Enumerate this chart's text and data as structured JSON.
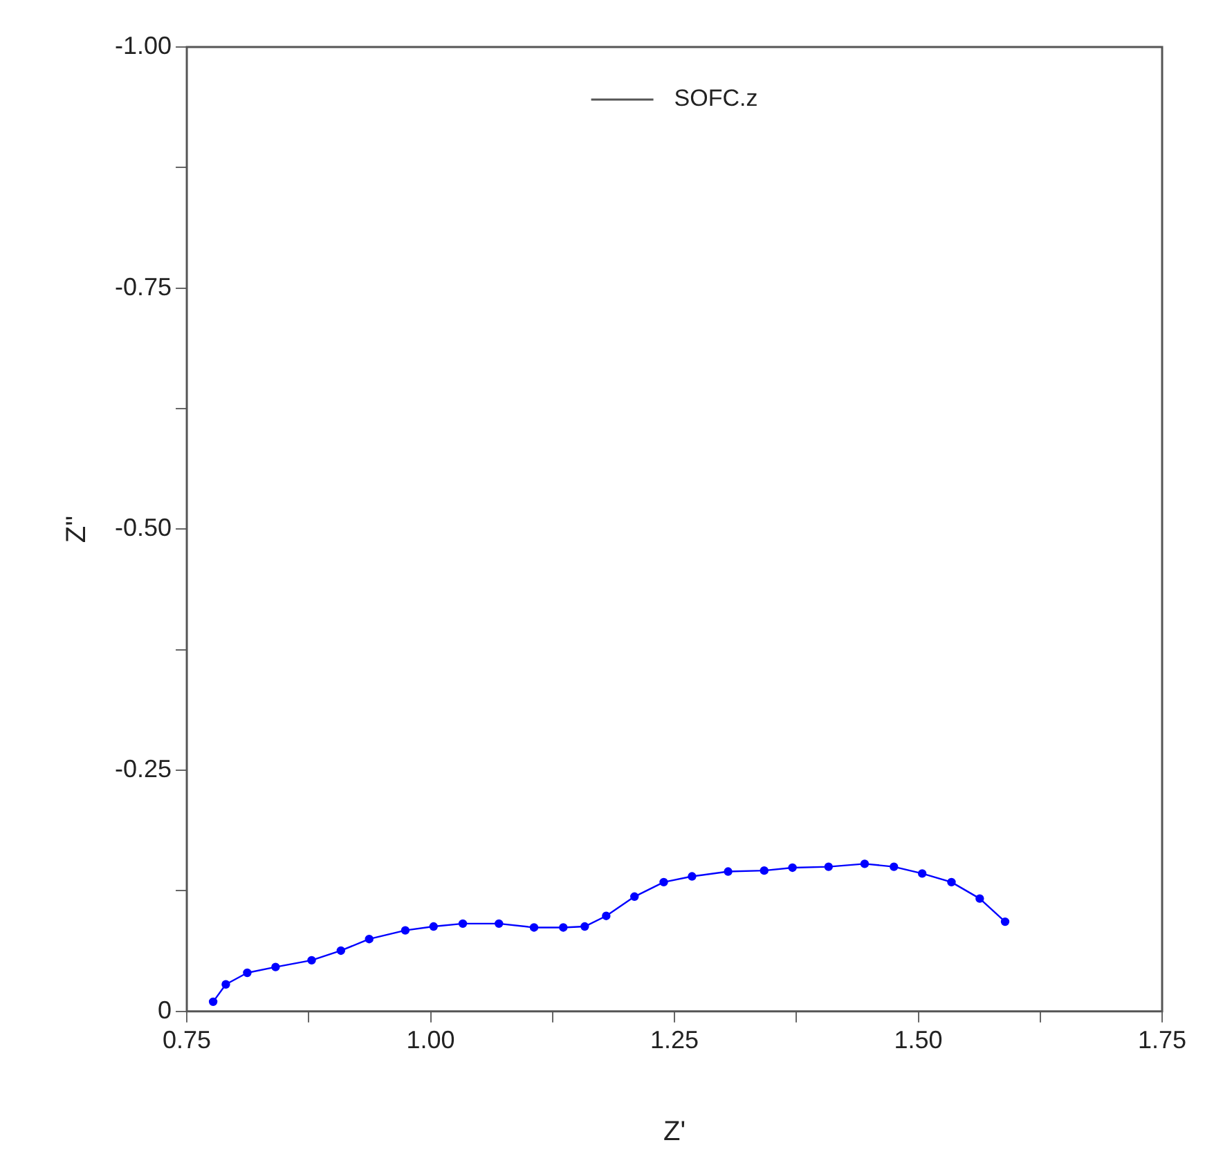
{
  "chart_data": {
    "type": "line",
    "xlabel": "Z'",
    "ylabel": "Z''",
    "legend": "top",
    "marker": "circle",
    "line_style": "solid",
    "grid": false,
    "xlim": [
      0.75,
      1.75
    ],
    "ylim": [
      0,
      -1.0
    ],
    "xticks": [
      {
        "value": 0.75,
        "label": "0.75"
      },
      {
        "value": 0.875,
        "label": null
      },
      {
        "value": 1.0,
        "label": "1.00"
      },
      {
        "value": 1.125,
        "label": null
      },
      {
        "value": 1.25,
        "label": "1.25"
      },
      {
        "value": 1.375,
        "label": null
      },
      {
        "value": 1.5,
        "label": "1.50"
      },
      {
        "value": 1.625,
        "label": null
      },
      {
        "value": 1.75,
        "label": "1.75"
      }
    ],
    "yticks": [
      0,
      {
        "value": -0.125,
        "label": null
      },
      {
        "value": -0.25,
        "label": "-0.25"
      },
      {
        "value": -0.375,
        "label": null
      },
      {
        "value": -0.5,
        "label": "-0.50"
      },
      {
        "value": -0.625,
        "label": null
      },
      {
        "value": -0.75,
        "label": "-0.75"
      },
      {
        "value": -0.875,
        "label": null
      },
      {
        "value": -1.0,
        "label": "-1.00"
      }
    ],
    "series": [
      {
        "name": "SOFC.z",
        "color": "#0000ff",
        "x": [
          0.777,
          0.79,
          0.812,
          0.841,
          0.878,
          0.908,
          0.937,
          0.974,
          1.003,
          1.033,
          1.07,
          1.106,
          1.136,
          1.158,
          1.18,
          1.209,
          1.239,
          1.268,
          1.305,
          1.342,
          1.371,
          1.408,
          1.445,
          1.475,
          1.504,
          1.534,
          1.563,
          1.589
        ],
        "values": [
          -0.01,
          -0.028,
          -0.04,
          -0.046,
          -0.053,
          -0.063,
          -0.075,
          -0.084,
          -0.088,
          -0.091,
          -0.091,
          -0.087,
          -0.087,
          -0.088,
          -0.099,
          -0.119,
          -0.134,
          -0.14,
          -0.145,
          -0.146,
          -0.149,
          -0.15,
          -0.153,
          -0.15,
          -0.143,
          -0.134,
          -0.117,
          -0.093
        ]
      }
    ]
  }
}
